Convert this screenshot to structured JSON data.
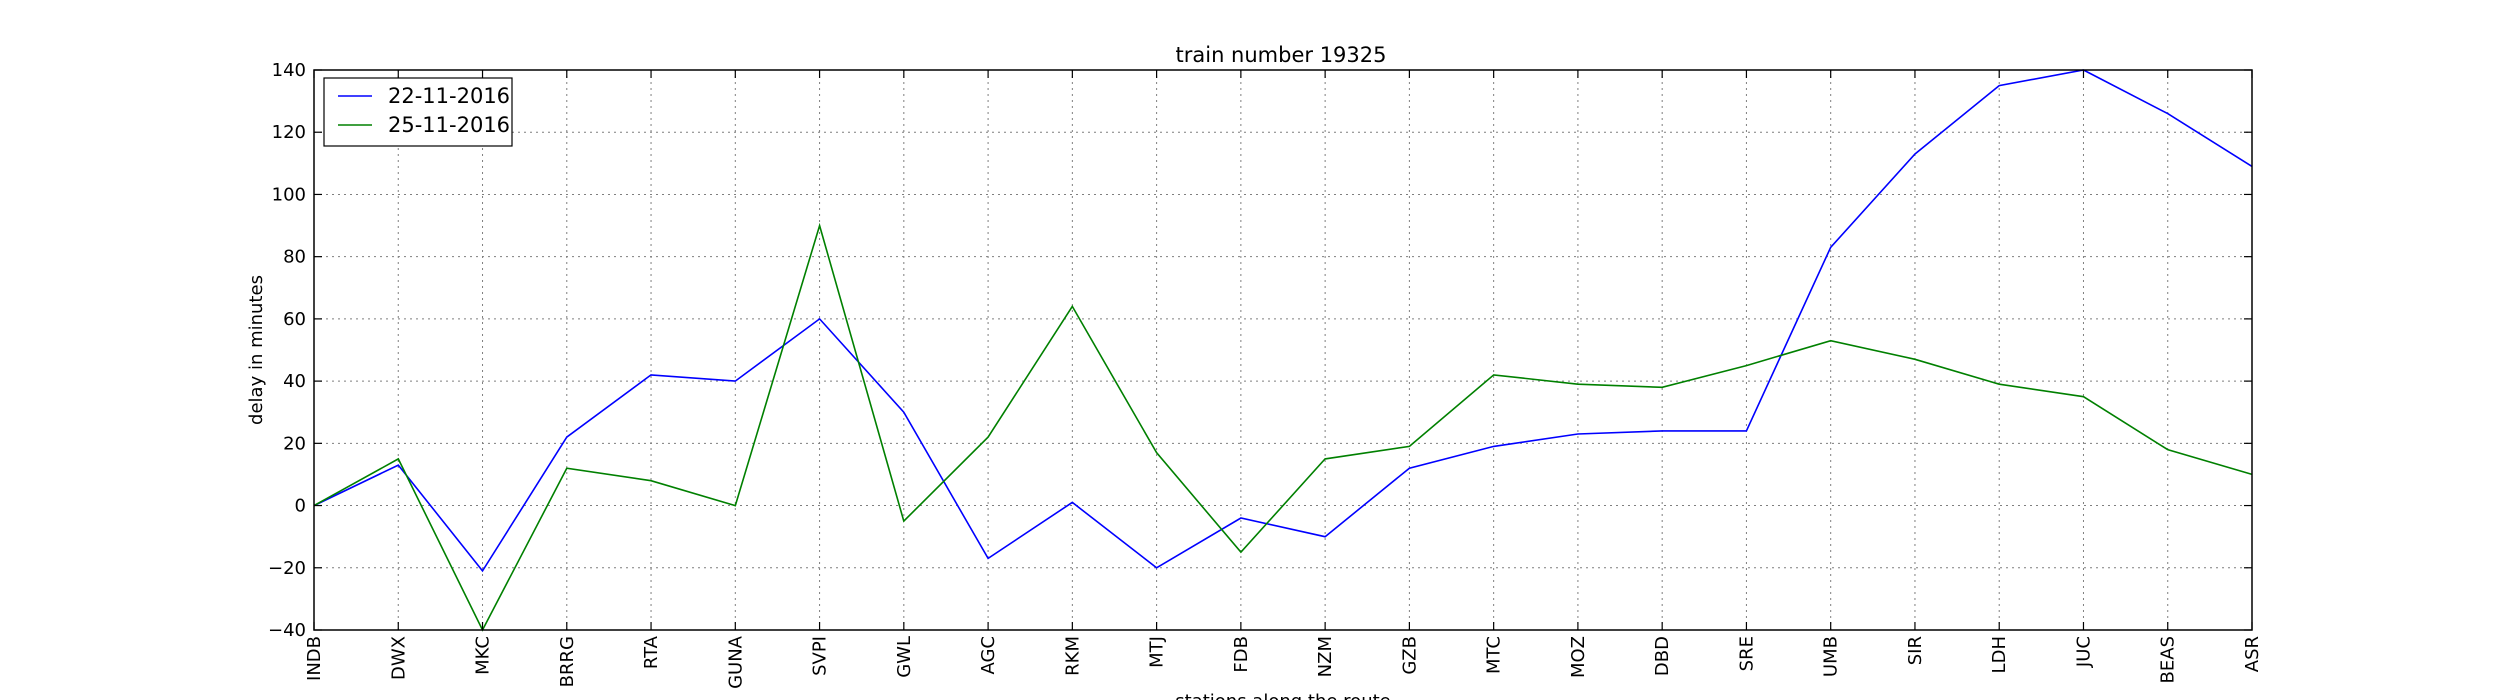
{
  "chart_data": {
    "type": "line",
    "title": "train number 19325",
    "xlabel": "stations along the route",
    "ylabel": "delay in minutes",
    "categories": [
      "INDB",
      "DWX",
      "MKC",
      "BRRG",
      "RTA",
      "GUNA",
      "SVPI",
      "GWL",
      "AGC",
      "RKM",
      "MTJ",
      "FDB",
      "NZM",
      "GZB",
      "MTC",
      "MOZ",
      "DBD",
      "SRE",
      "UMB",
      "SIR",
      "LDH",
      "JUC",
      "BEAS",
      "ASR"
    ],
    "ylim": [
      -40,
      140
    ],
    "yticks": [
      -40,
      -20,
      0,
      20,
      40,
      60,
      80,
      100,
      120,
      140
    ],
    "grid": true,
    "legend_position": "top-left",
    "series": [
      {
        "name": "22-11-2016",
        "color": "#0000ff",
        "values": [
          0,
          13,
          -21,
          22,
          42,
          40,
          60,
          30,
          -17,
          1,
          -20,
          -4,
          -10,
          12,
          19,
          23,
          24,
          24,
          83,
          113,
          135,
          140,
          126,
          109
        ]
      },
      {
        "name": "25-11-2016",
        "color": "#008000",
        "values": [
          0,
          15,
          -40,
          12,
          8,
          0,
          90,
          -5,
          22,
          64,
          17,
          -15,
          15,
          19,
          42,
          39,
          38,
          45,
          53,
          47,
          39,
          35,
          18,
          10
        ]
      }
    ]
  }
}
